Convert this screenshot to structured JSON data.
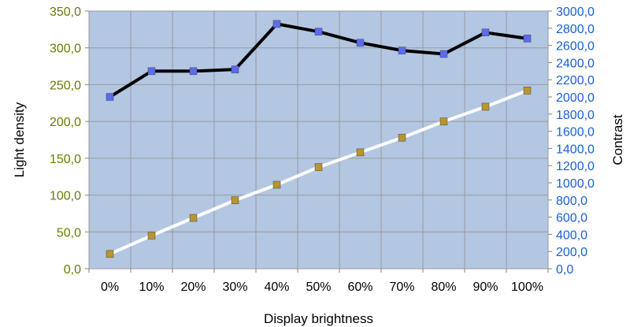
{
  "chart_data": {
    "type": "line",
    "title": "",
    "xlabel": "Display brightness",
    "ylabel": "Light density",
    "y2label": "Contrast",
    "categories": [
      "0%",
      "10%",
      "20%",
      "30%",
      "40%",
      "50%",
      "60%",
      "70%",
      "80%",
      "90%",
      "100%"
    ],
    "ylim": [
      0,
      350
    ],
    "y2lim": [
      0,
      3000
    ],
    "yticks": [
      "0,0",
      "50,0",
      "100,0",
      "150,0",
      "200,0",
      "250,0",
      "300,0",
      "350,0"
    ],
    "y2ticks": [
      "0,0",
      "200,0",
      "400,0",
      "600,0",
      "800,0",
      "1000,0",
      "1200,0",
      "1400,0",
      "1600,0",
      "1800,0",
      "2000,0",
      "2200,0",
      "2400,0",
      "2600,0",
      "2800,0",
      "3000,0"
    ],
    "grid": true,
    "legend": "none",
    "series": [
      {
        "axis": "left",
        "values": [
          20,
          45,
          69,
          93,
          114,
          138,
          158,
          178,
          200,
          220,
          242
        ],
        "line_color": "#ffffff",
        "marker_color": "#b8952e"
      },
      {
        "axis": "right",
        "values": [
          2000,
          2300,
          2300,
          2320,
          2850,
          2760,
          2630,
          2540,
          2500,
          2750,
          2680
        ],
        "line_color": "#000000",
        "marker_color": "#5b6cf0"
      }
    ],
    "colors": {
      "plot_background": "#b3c6e2",
      "grid": "#9a9a9a",
      "left_tick_text": "#6b7a00",
      "right_tick_text": "#1a5fd6"
    }
  }
}
